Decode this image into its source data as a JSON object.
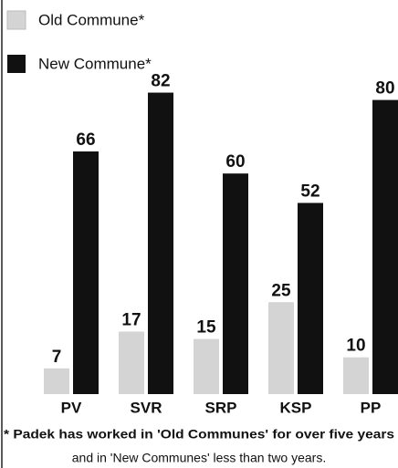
{
  "chart_data": {
    "type": "bar",
    "categories": [
      "PV",
      "SVR",
      "SRP",
      "KSP",
      "PP"
    ],
    "series": [
      {
        "name": "Old Commune*",
        "color": "#d4d4d4",
        "values": [
          7,
          17,
          15,
          25,
          10
        ]
      },
      {
        "name": "New Commune*",
        "color": "#111111",
        "values": [
          66,
          82,
          60,
          52,
          80
        ]
      }
    ],
    "annotations": [
      "* Padek has worked in 'Old Communes' for over five years",
      "and in 'New Communes' less than two years."
    ]
  }
}
